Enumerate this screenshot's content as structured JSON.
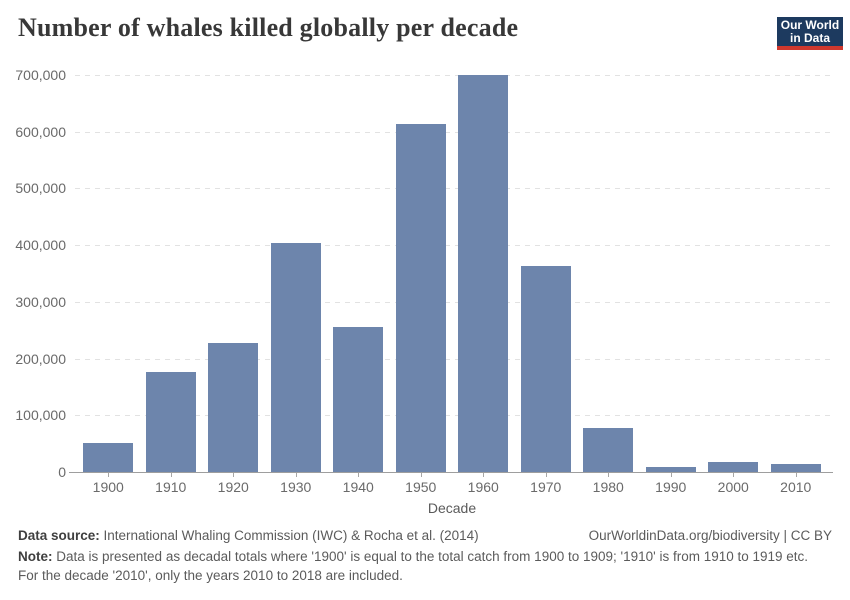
{
  "header": {
    "title": "Number of whales killed globally per decade",
    "logo": {
      "line1": "Our World",
      "line2": "in Data"
    }
  },
  "chart_data": {
    "type": "bar",
    "title": "Number of whales killed globally per decade",
    "categories": [
      "1900",
      "1910",
      "1920",
      "1930",
      "1940",
      "1950",
      "1960",
      "1970",
      "1980",
      "1990",
      "2000",
      "2010"
    ],
    "values": [
      52000,
      177000,
      228000,
      403000,
      256000,
      613000,
      700000,
      363000,
      77000,
      8000,
      17500,
      14000
    ],
    "xlabel": "Decade",
    "ylabel": "",
    "ylim": [
      0,
      700000
    ],
    "yticks": [
      0,
      100000,
      200000,
      300000,
      400000,
      500000,
      600000,
      700000
    ],
    "ytick_labels": [
      "0",
      "100,000",
      "200,000",
      "300,000",
      "400,000",
      "500,000",
      "600,000",
      "700,000"
    ],
    "grid": "horizontal-dashed",
    "legend": "none",
    "bar_color": "#6d85ac"
  },
  "colors": {
    "bar": "#6d85ac",
    "logo_navy": "#1d3a5f",
    "logo_red": "#d0382d",
    "grid": "#e2e2e2",
    "axis": "#9e9e9e",
    "tick_text": "#6a6a6a"
  },
  "footer": {
    "source_label": "Data source:",
    "source_text": " International Whaling Commission (IWC) & Rocha et al. (2014)",
    "link_text": "OurWorldinData.org/biodiversity | CC BY",
    "note_label": "Note:",
    "note_text": " Data is presented as decadal totals where '1900' is equal to the total catch from 1900 to 1909; '1910' is from 1910 to 1919 etc. For the decade '2010', only the years 2010 to 2018 are included."
  }
}
